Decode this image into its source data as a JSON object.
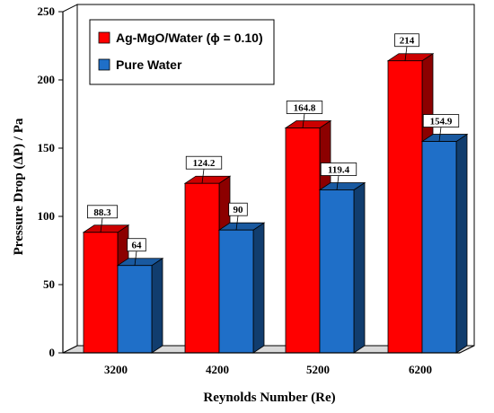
{
  "chart_data": {
    "type": "bar",
    "categories": [
      "3200",
      "4200",
      "5200",
      "6200"
    ],
    "series": [
      {
        "name": "Ag-MgO/Water (ϕ = 0.10)",
        "values": [
          88.3,
          124.2,
          164.8,
          214
        ],
        "labels": [
          "88.3",
          "124.2",
          "164.8",
          "214"
        ],
        "color": "#ff0000"
      },
      {
        "name": "Pure Water",
        "values": [
          64,
          90,
          119.4,
          154.9
        ],
        "labels": [
          "64",
          "90",
          "119.4",
          "154.9"
        ],
        "color": "#1f6fc8"
      }
    ],
    "xlabel": "Reynolds Number (Re)",
    "ylabel": "Pressure Drop (ΔP) / Pa",
    "ylim": [
      0,
      250
    ],
    "yticks": [
      "0",
      "50",
      "100",
      "150",
      "200",
      "250"
    ],
    "legend_position": "top-left",
    "grid": false,
    "style": "3d"
  }
}
